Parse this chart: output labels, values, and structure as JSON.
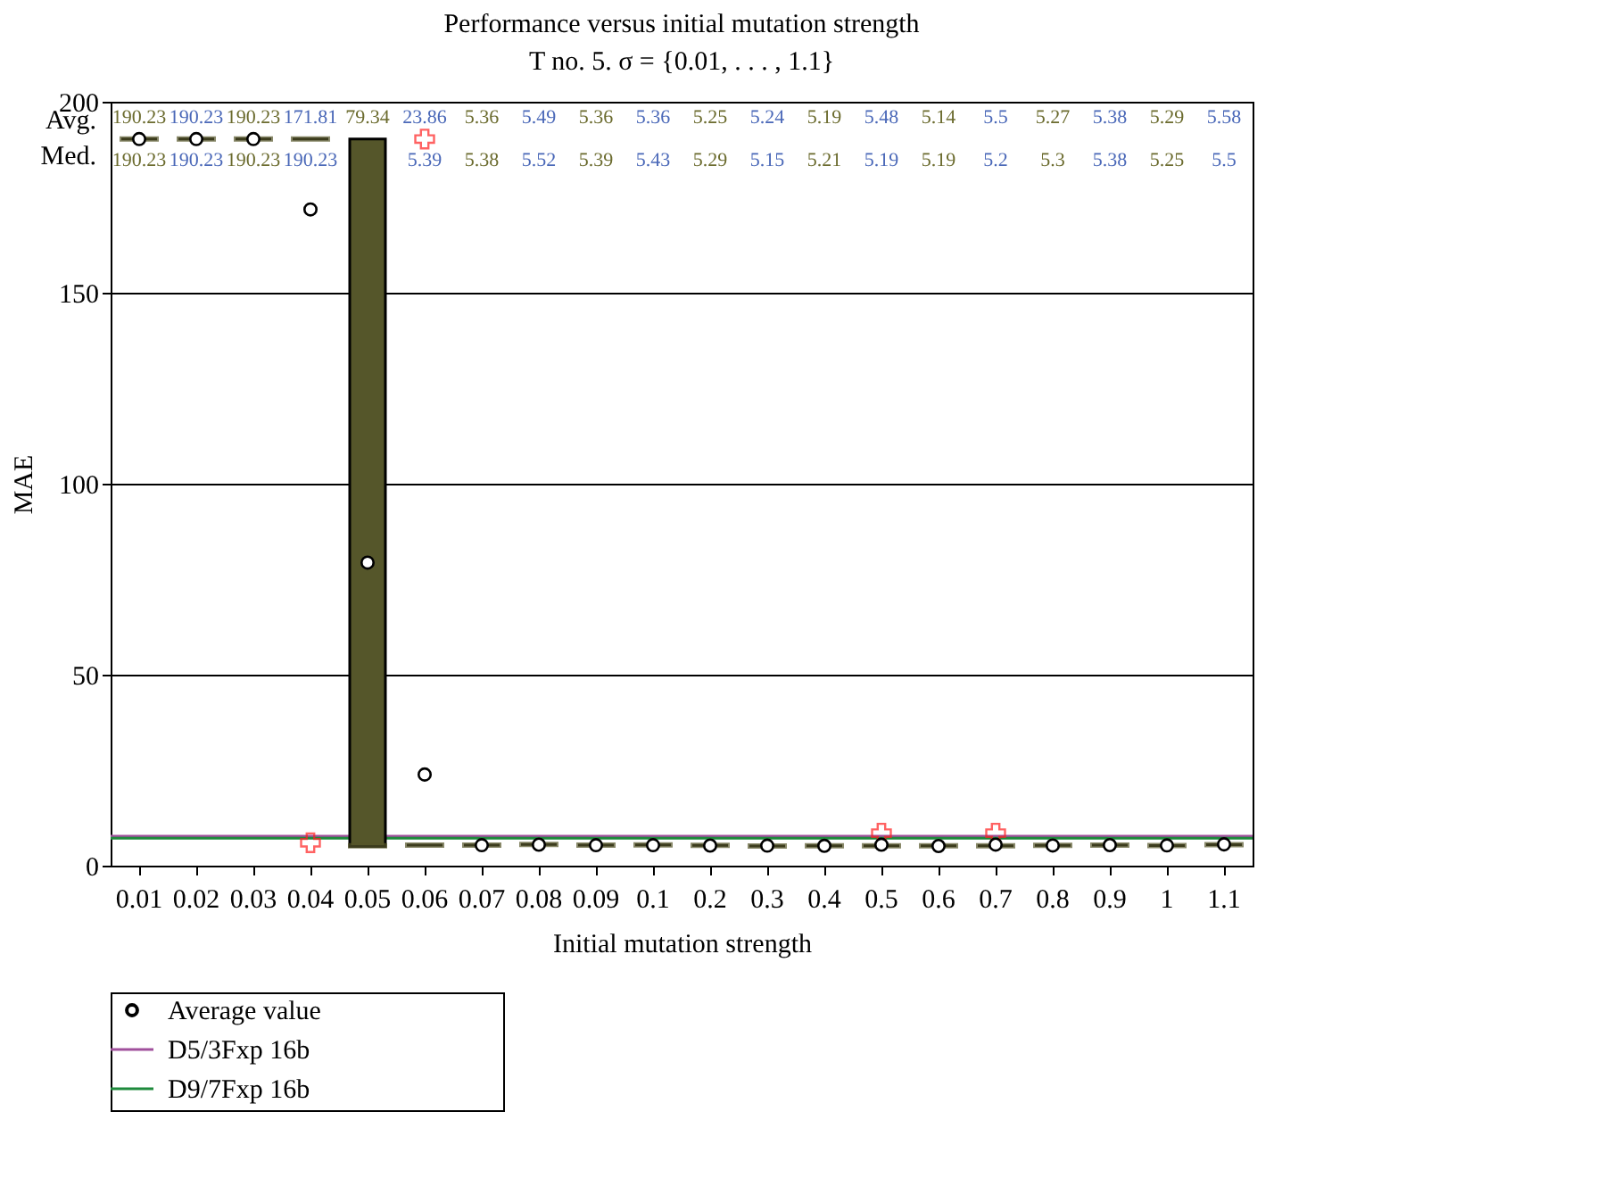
{
  "chart_data": {
    "type": "box",
    "title": "Performance versus initial mutation strength",
    "subtitle": "T no. 5. σ = {0.01, . . . , 1.1}",
    "xlabel": "Initial mutation strength",
    "ylabel": "MAE",
    "categories": [
      "0.01",
      "0.02",
      "0.03",
      "0.04",
      "0.05",
      "0.06",
      "0.07",
      "0.08",
      "0.09",
      "0.1",
      "0.2",
      "0.3",
      "0.4",
      "0.5",
      "0.6",
      "0.7",
      "0.8",
      "0.9",
      "1",
      "1.1"
    ],
    "ylim": [
      0,
      200
    ],
    "yticks": [
      0,
      50,
      100,
      150,
      200
    ],
    "grid": "y",
    "legend": "bottom left",
    "annotations": [
      "Avg.",
      "Med.",
      "190.23",
      "190.23",
      "190.23",
      "171.81",
      "79.34",
      "23.86",
      "5.36",
      "5.49",
      "5.36",
      "5.36",
      "5.25",
      "5.24",
      "5.19",
      "5.48",
      "5.14",
      "5.5",
      "5.27",
      "5.38",
      "5.29",
      "5.58"
    ],
    "series": [
      {
        "type": "box",
        "color": "#55562a",
        "boxes": [
          {
            "low": 190.23,
            "q1": 190.23,
            "median": 190.23,
            "q3": 190.23,
            "high": 190.23
          },
          {
            "low": 190.23,
            "q1": 190.23,
            "median": 190.23,
            "q3": 190.23,
            "high": 190.23
          },
          {
            "low": 190.23,
            "q1": 190.23,
            "median": 190.23,
            "q3": 190.23,
            "high": 190.23
          },
          {
            "low": 190.23,
            "q1": 190.23,
            "median": 190.23,
            "q3": 190.23,
            "high": 190.23,
            "outliers": [
              6
            ]
          },
          {
            "low": 5,
            "q1": 5,
            "median": 5.2,
            "q3": 190.23,
            "high": 190.23
          },
          {
            "low": 5.39,
            "q1": 5.39,
            "median": 5.39,
            "q3": 5.39,
            "high": 5.39,
            "outliers": [
              190.23
            ]
          },
          {
            "low": 5.38,
            "q1": 5.38,
            "median": 5.38,
            "q3": 5.38,
            "high": 5.38
          },
          {
            "low": 5.52,
            "q1": 5.52,
            "median": 5.52,
            "q3": 5.52,
            "high": 5.52
          },
          {
            "low": 5.39,
            "q1": 5.39,
            "median": 5.39,
            "q3": 5.39,
            "high": 5.39
          },
          {
            "low": 5.43,
            "q1": 5.43,
            "median": 5.43,
            "q3": 5.43,
            "high": 5.43
          },
          {
            "low": 5.29,
            "q1": 5.29,
            "median": 5.29,
            "q3": 5.29,
            "high": 5.29
          },
          {
            "low": 5.15,
            "q1": 5.15,
            "median": 5.15,
            "q3": 5.15,
            "high": 5.15
          },
          {
            "low": 5.21,
            "q1": 5.21,
            "median": 5.21,
            "q3": 5.21,
            "high": 5.21
          },
          {
            "low": 5.19,
            "q1": 5.19,
            "median": 5.19,
            "q3": 5.19,
            "high": 5.19,
            "outliers": [
              8.5
            ]
          },
          {
            "low": 5.19,
            "q1": 5.19,
            "median": 5.19,
            "q3": 5.19,
            "high": 5.19
          },
          {
            "low": 5.2,
            "q1": 5.2,
            "median": 5.2,
            "q3": 5.2,
            "high": 5.2,
            "outliers": [
              8.5
            ]
          },
          {
            "low": 5.3,
            "q1": 5.3,
            "median": 5.3,
            "q3": 5.3,
            "high": 5.3
          },
          {
            "low": 5.38,
            "q1": 5.38,
            "median": 5.38,
            "q3": 5.38,
            "high": 5.38
          },
          {
            "low": 5.25,
            "q1": 5.25,
            "median": 5.25,
            "q3": 5.25,
            "high": 5.25
          },
          {
            "low": 5.5,
            "q1": 5.5,
            "median": 5.5,
            "q3": 5.5,
            "high": 5.5
          }
        ],
        "value_labels": [
          "190.23",
          "190.23",
          "190.23",
          "190.23",
          null,
          "5.39",
          "5.38",
          "5.52",
          "5.39",
          "5.43",
          "5.29",
          "5.15",
          "5.21",
          "5.19",
          "5.19",
          "5.2",
          "5.3",
          "5.38",
          "5.25",
          "5.5"
        ]
      },
      {
        "name": "Average value",
        "type": "scatter",
        "marker": "circle",
        "color": "#000000",
        "values": [
          190.23,
          190.23,
          190.23,
          171.81,
          79.34,
          23.86,
          5.36,
          5.49,
          5.36,
          5.36,
          5.25,
          5.24,
          5.19,
          5.48,
          5.14,
          5.5,
          5.27,
          5.38,
          5.29,
          5.58
        ]
      }
    ],
    "ref_lines": [
      {
        "axis": "y",
        "value": 7.7,
        "label": "D5/3Fxp 16b",
        "color": "#a0509c"
      },
      {
        "axis": "y",
        "value": 7.2,
        "label": "D9/7Fxp 16b",
        "color": "#1e8a3c"
      }
    ]
  }
}
